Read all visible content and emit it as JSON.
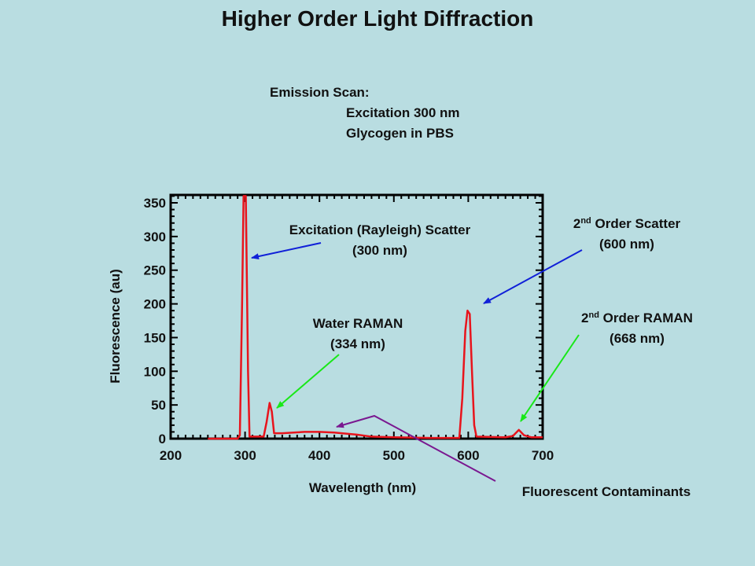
{
  "slide": {
    "title": "Higher Order Light Diffraction",
    "emission_scan": {
      "heading": "Emission Scan:",
      "line1": "Excitation 300 nm",
      "line2": "Glycogen in PBS"
    }
  },
  "annotations": {
    "rayleigh": {
      "line1": "Excitation (Rayleigh) Scatter",
      "line2": "(300 nm)"
    },
    "water_raman": {
      "line1": "Water RAMAN",
      "line2": "(334 nm)"
    },
    "second_scatter": {
      "num": "2",
      "sup": "nd",
      "rest": " Order Scatter",
      "line2": "(600 nm)"
    },
    "second_raman": {
      "num": "2",
      "sup": "nd",
      "rest": " Order RAMAN",
      "line2": "(668 nm)"
    },
    "contaminants": {
      "label": "Fluorescent Contaminants"
    }
  },
  "colors": {
    "line": "#e8141c",
    "blue_arrow": "#1020d8",
    "green_arrow": "#18e818",
    "purple_arrow": "#7a1890",
    "background": "#b9dde1"
  },
  "chart_data": {
    "type": "line",
    "title": "",
    "xlabel": "Wavelength (nm)",
    "ylabel": "Fluorescence (au)",
    "xlim": [
      200,
      700
    ],
    "ylim": [
      0,
      350
    ],
    "xticks": [
      200,
      300,
      400,
      500,
      600,
      700
    ],
    "yticks": [
      0,
      50,
      100,
      150,
      200,
      250,
      300,
      350
    ],
    "grid": false,
    "series": [
      {
        "name": "Emission",
        "x": [
          250,
          290,
          293,
          296,
          298,
          301,
          304,
          306,
          325,
          329,
          333,
          336,
          339,
          350,
          380,
          400,
          420,
          450,
          470,
          500,
          550,
          588,
          592,
          596,
          599,
          602,
          605,
          608,
          611,
          650,
          660,
          668,
          675,
          685,
          700
        ],
        "y": [
          0,
          0,
          5,
          200,
          360,
          360,
          100,
          3,
          3,
          25,
          53,
          40,
          8,
          8,
          10,
          10,
          9,
          6,
          3,
          2,
          1,
          1,
          60,
          160,
          190,
          185,
          100,
          20,
          3,
          2,
          4,
          13,
          5,
          2,
          2
        ]
      }
    ]
  }
}
